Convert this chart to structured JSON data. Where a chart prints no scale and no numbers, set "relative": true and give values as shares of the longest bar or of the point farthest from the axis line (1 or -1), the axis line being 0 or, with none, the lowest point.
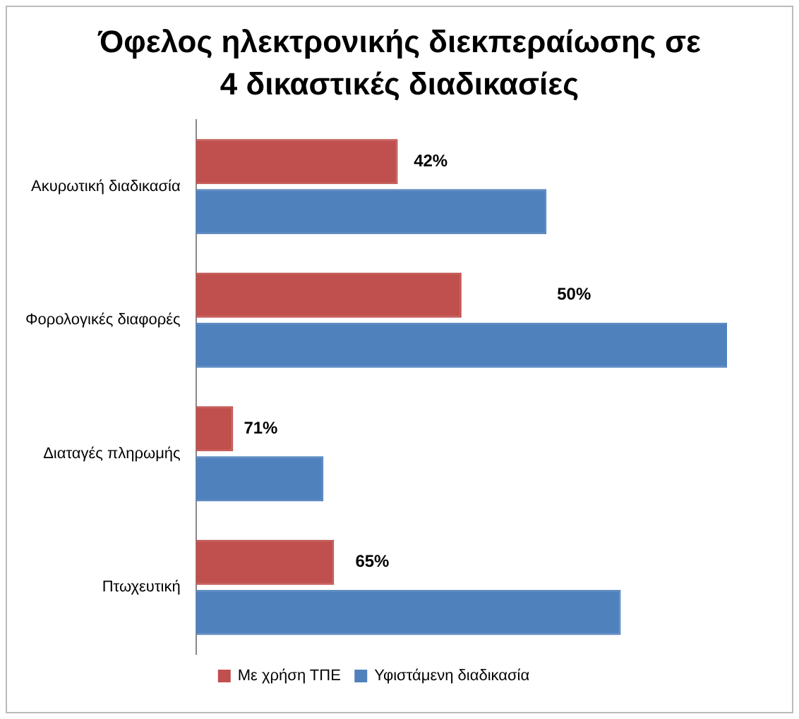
{
  "chart_data": {
    "type": "bar",
    "orientation": "horizontal",
    "relative": true,
    "title": "Όφελος ηλεκτρονικής διεκπεραίωσης σε 4 δικαστικές διαδικασίες",
    "categories": [
      "Ακυρωτική διαδικασία",
      "Φορολογικές διαφορές",
      "Διαταγές πληρωμής",
      "Πτωχευτική"
    ],
    "series": [
      {
        "name": "Με χρήση ΤΠΕ",
        "color": "#c0504d",
        "values": [
          0.38,
          0.5,
          0.07,
          0.26
        ]
      },
      {
        "name": "Υφιστάμενη διαδικασία",
        "color": "#4f81bd",
        "values": [
          0.66,
          1,
          0.24,
          0.8
        ]
      }
    ],
    "annotations": [
      {
        "text": "42%",
        "x": 0.41,
        "y": "Ακυρωτική διαδικασία"
      },
      {
        "text": "50%",
        "x": 0.68,
        "y": "Φορολογικές διαφορές"
      },
      {
        "text": "71%",
        "x": 0.09,
        "y": "Διαταγές πληρωμής"
      },
      {
        "text": "65%",
        "x": 0.3,
        "y": "Πτωχευτική"
      }
    ],
    "legend": "bottom"
  }
}
